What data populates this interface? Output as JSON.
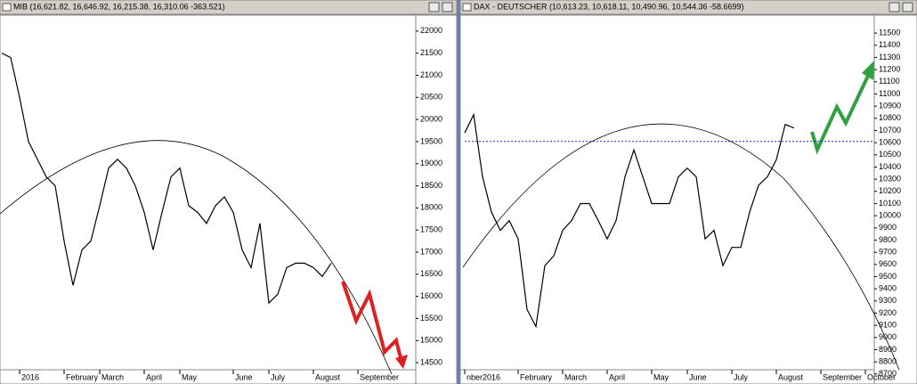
{
  "chart_data": [
    {
      "type": "line",
      "title": "MIB (16,621.82, 16,646.92, 16,215.38, 16,310.06 -363.521)",
      "categories": [
        null,
        null,
        "2016",
        null,
        null,
        null,
        null,
        "February",
        null,
        null,
        null,
        "March",
        null,
        null,
        null,
        null,
        "April",
        null,
        null,
        null,
        "May",
        null,
        null,
        null,
        null,
        null,
        "June",
        null,
        null,
        null,
        "July",
        null,
        null,
        null,
        null,
        "August",
        null,
        null,
        null,
        null,
        "September",
        null,
        null,
        null,
        null,
        null,
        null
      ],
      "series": [
        {
          "color": "#000000",
          "values": [
            21500,
            21400,
            20500,
            19500,
            19100,
            18700,
            18500,
            17250,
            16250,
            17050,
            17250,
            18050,
            18900,
            19100,
            18900,
            18500,
            17900,
            17050,
            17900,
            18700,
            18900,
            18050,
            17900,
            17650,
            18050,
            18250,
            17900,
            17050,
            16650,
            17650,
            15850,
            16050,
            16650,
            16750,
            16750,
            16650,
            16450,
            16750,
            null,
            null,
            null,
            null,
            null,
            null,
            null,
            null,
            null
          ]
        }
      ],
      "ylim": [
        14340,
        22340
      ],
      "yticks": [
        14500,
        15000,
        15500,
        16000,
        16500,
        17000,
        17500,
        18000,
        18500,
        19000,
        19500,
        20000,
        20500,
        21000,
        21500,
        22000
      ]
    },
    {
      "type": "line",
      "title": "DAX - DEUTSCHER (10,613.23, 10,618.11, 10,490.96, 10,544.36 -58.6699)",
      "categories": [
        "nber2016",
        null,
        null,
        null,
        null,
        null,
        "February",
        null,
        null,
        null,
        null,
        "March",
        null,
        null,
        null,
        null,
        "April",
        null,
        null,
        null,
        null,
        "May",
        null,
        null,
        null,
        "June",
        null,
        null,
        null,
        null,
        "July",
        null,
        null,
        null,
        null,
        "August",
        null,
        null,
        null,
        null,
        "September",
        null,
        null,
        null,
        null,
        "October"
      ],
      "series": [
        {
          "color": "#000000",
          "values": [
            10680,
            10830,
            10320,
            10030,
            9880,
            9960,
            9810,
            9230,
            9090,
            9590,
            9670,
            9880,
            9960,
            10100,
            10100,
            9960,
            9810,
            9960,
            10320,
            10540,
            10320,
            10100,
            10100,
            10100,
            10320,
            10390,
            10320,
            9810,
            9880,
            9590,
            9740,
            9740,
            10030,
            10250,
            10320,
            10460,
            10750,
            10720,
            null,
            null,
            null,
            null,
            null,
            null,
            null,
            null
          ]
        }
      ],
      "reference_line": 10610,
      "ylim": [
        8640,
        11640
      ],
      "yticks": [
        8700,
        8800,
        8900,
        9000,
        9100,
        9200,
        9300,
        9400,
        9500,
        9600,
        9700,
        9800,
        9900,
        10000,
        10100,
        10200,
        10300,
        10400,
        10500,
        10600,
        10700,
        10800,
        10900,
        11000,
        11100,
        11200,
        11300,
        11400,
        11500
      ]
    }
  ]
}
